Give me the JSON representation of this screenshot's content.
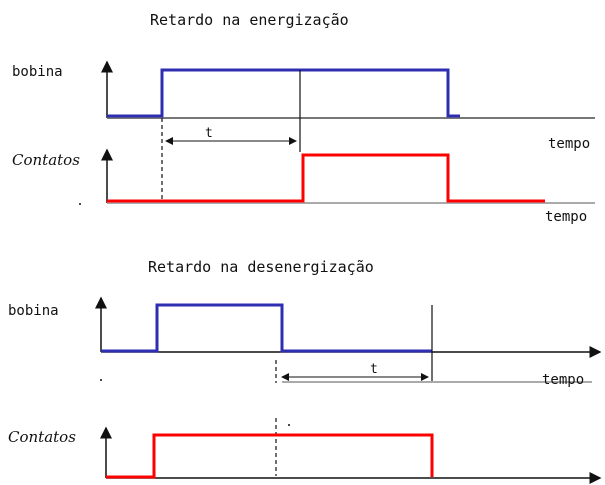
{
  "colors": {
    "bobina": "#2e2eb0",
    "contatos": "#ff0000",
    "axis": "#777777",
    "dark": "#111111"
  },
  "diagram1": {
    "title": "Retardo na energização",
    "bobina_label": "bobina",
    "contatos_label": "Contatos",
    "delay_label": "t",
    "time_label_1": "tempo",
    "time_label_2": "tempo"
  },
  "diagram2": {
    "title": "Retardo na desenergização",
    "bobina_label": "bobina",
    "contatos_label": "Contatos",
    "delay_label": "t",
    "time_label": "tempo"
  }
}
